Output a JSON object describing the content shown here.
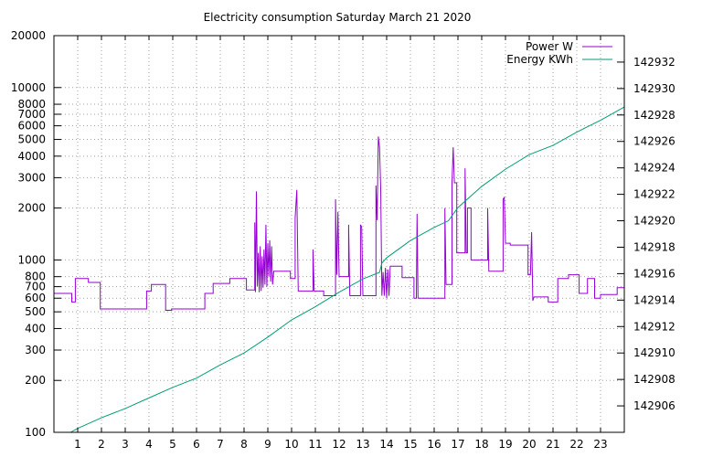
{
  "chart_data": {
    "type": "line",
    "title": "Electricity consumption Saturday March 21 2020",
    "grid": true,
    "legend_position": "top-right",
    "x": {
      "range": [
        0,
        24
      ],
      "ticks": [
        1,
        2,
        3,
        4,
        5,
        6,
        7,
        8,
        9,
        10,
        11,
        12,
        13,
        14,
        15,
        16,
        17,
        18,
        19,
        20,
        21,
        22,
        23
      ]
    },
    "y_left": {
      "scale": "log",
      "range": [
        100,
        20000
      ],
      "ticks": [
        100,
        200,
        300,
        400,
        500,
        600,
        700,
        800,
        1000,
        2000,
        3000,
        4000,
        5000,
        6000,
        7000,
        8000,
        10000,
        20000
      ]
    },
    "y_right": {
      "scale": "linear",
      "range": [
        142904,
        142934
      ],
      "ticks": [
        142906,
        142908,
        142910,
        142912,
        142914,
        142916,
        142918,
        142920,
        142922,
        142924,
        142926,
        142928,
        142930,
        142932
      ]
    },
    "series": [
      {
        "name": "Power W",
        "axis": "left",
        "color": "#9400d3",
        "points": [
          [
            0,
            640
          ],
          [
            0.75,
            640
          ],
          [
            0.75,
            570
          ],
          [
            0.9,
            570
          ],
          [
            0.9,
            780
          ],
          [
            1.45,
            780
          ],
          [
            1.45,
            740
          ],
          [
            1.95,
            740
          ],
          [
            1.95,
            520
          ],
          [
            3.9,
            520
          ],
          [
            3.9,
            660
          ],
          [
            4.1,
            660
          ],
          [
            4.1,
            720
          ],
          [
            4.7,
            720
          ],
          [
            4.7,
            510
          ],
          [
            4.95,
            510
          ],
          [
            4.95,
            520
          ],
          [
            6.35,
            520
          ],
          [
            6.35,
            640
          ],
          [
            6.7,
            640
          ],
          [
            6.7,
            730
          ],
          [
            7.4,
            730
          ],
          [
            7.4,
            780
          ],
          [
            8.1,
            780
          ],
          [
            8.1,
            670
          ],
          [
            8.45,
            670
          ],
          [
            8.45,
            1650
          ],
          [
            8.48,
            650
          ],
          [
            8.52,
            2500
          ],
          [
            8.56,
            700
          ],
          [
            8.6,
            1100
          ],
          [
            8.64,
            650
          ],
          [
            8.68,
            1200
          ],
          [
            8.72,
            660
          ],
          [
            8.76,
            1050
          ],
          [
            8.8,
            690
          ],
          [
            8.84,
            1150
          ],
          [
            8.88,
            720
          ],
          [
            8.92,
            1600
          ],
          [
            8.96,
            700
          ],
          [
            9.0,
            1250
          ],
          [
            9.04,
            800
          ],
          [
            9.08,
            1300
          ],
          [
            9.12,
            750
          ],
          [
            9.16,
            1200
          ],
          [
            9.2,
            720
          ],
          [
            9.25,
            860
          ],
          [
            9.95,
            860
          ],
          [
            9.95,
            780
          ],
          [
            10.15,
            780
          ],
          [
            10.15,
            1750
          ],
          [
            10.22,
            2550
          ],
          [
            10.28,
            660
          ],
          [
            10.9,
            660
          ],
          [
            10.9,
            1150
          ],
          [
            10.95,
            660
          ],
          [
            11.35,
            660
          ],
          [
            11.35,
            620
          ],
          [
            11.85,
            620
          ],
          [
            11.85,
            2250
          ],
          [
            11.9,
            820
          ],
          [
            11.95,
            1900
          ],
          [
            12.0,
            800
          ],
          [
            12.4,
            800
          ],
          [
            12.4,
            1600
          ],
          [
            12.45,
            620
          ],
          [
            12.9,
            620
          ],
          [
            12.9,
            1600
          ],
          [
            12.95,
            1550
          ],
          [
            13.0,
            620
          ],
          [
            13.55,
            620
          ],
          [
            13.55,
            2700
          ],
          [
            13.6,
            1700
          ],
          [
            13.65,
            5200
          ],
          [
            13.7,
            4500
          ],
          [
            13.75,
            2600
          ],
          [
            13.8,
            620
          ],
          [
            13.85,
            850
          ],
          [
            13.9,
            620
          ],
          [
            13.95,
            900
          ],
          [
            14.0,
            600
          ],
          [
            14.05,
            880
          ],
          [
            14.1,
            620
          ],
          [
            14.15,
            920
          ],
          [
            14.65,
            920
          ],
          [
            14.65,
            790
          ],
          [
            15.15,
            790
          ],
          [
            15.15,
            600
          ],
          [
            15.25,
            600
          ],
          [
            15.28,
            1850
          ],
          [
            15.32,
            600
          ],
          [
            16.45,
            600
          ],
          [
            16.45,
            2000
          ],
          [
            16.5,
            720
          ],
          [
            16.75,
            720
          ],
          [
            16.75,
            2800
          ],
          [
            16.8,
            4500
          ],
          [
            16.85,
            2800
          ],
          [
            16.95,
            2800
          ],
          [
            16.95,
            1100
          ],
          [
            17.3,
            1100
          ],
          [
            17.3,
            3400
          ],
          [
            17.35,
            1100
          ],
          [
            17.4,
            1100
          ],
          [
            17.4,
            2000
          ],
          [
            17.55,
            2000
          ],
          [
            17.55,
            1000
          ],
          [
            18.25,
            1000
          ],
          [
            18.25,
            2000
          ],
          [
            18.3,
            860
          ],
          [
            18.9,
            860
          ],
          [
            18.9,
            2250
          ],
          [
            18.95,
            2300
          ],
          [
            19.0,
            1250
          ],
          [
            19.2,
            1250
          ],
          [
            19.2,
            1220
          ],
          [
            19.95,
            1220
          ],
          [
            19.95,
            820
          ],
          [
            20.05,
            820
          ],
          [
            20.1,
            1450
          ],
          [
            20.15,
            580
          ],
          [
            20.2,
            610
          ],
          [
            20.8,
            610
          ],
          [
            20.8,
            570
          ],
          [
            21.2,
            570
          ],
          [
            21.2,
            780
          ],
          [
            21.65,
            780
          ],
          [
            21.65,
            820
          ],
          [
            22.1,
            820
          ],
          [
            22.1,
            640
          ],
          [
            22.45,
            640
          ],
          [
            22.45,
            780
          ],
          [
            22.75,
            780
          ],
          [
            22.75,
            600
          ],
          [
            23.0,
            600
          ],
          [
            23.0,
            630
          ],
          [
            23.7,
            630
          ],
          [
            23.7,
            690
          ],
          [
            24.0,
            690
          ]
        ]
      },
      {
        "name": "Energy KWh",
        "axis": "right",
        "color": "#009e73",
        "points": [
          [
            0.7,
            142904
          ],
          [
            1,
            142904.3
          ],
          [
            2,
            142905.1
          ],
          [
            3,
            142905.8
          ],
          [
            4,
            142906.6
          ],
          [
            5,
            142907.4
          ],
          [
            6,
            142908.1
          ],
          [
            7,
            142909.1
          ],
          [
            8,
            142910.0
          ],
          [
            9,
            142911.2
          ],
          [
            10,
            142912.5
          ],
          [
            11,
            142913.5
          ],
          [
            12,
            142914.6
          ],
          [
            13,
            142915.6
          ],
          [
            13.7,
            142916.1
          ],
          [
            13.8,
            142916.8
          ],
          [
            14,
            142917.2
          ],
          [
            15,
            142918.5
          ],
          [
            16,
            142919.5
          ],
          [
            16.6,
            142920.0
          ],
          [
            17,
            142921.0
          ],
          [
            17.5,
            142921.8
          ],
          [
            18,
            142922.6
          ],
          [
            19,
            142923.9
          ],
          [
            20,
            142925.0
          ],
          [
            21,
            142925.7
          ],
          [
            22,
            142926.7
          ],
          [
            23,
            142927.6
          ],
          [
            24,
            142928.6
          ]
        ]
      }
    ]
  }
}
